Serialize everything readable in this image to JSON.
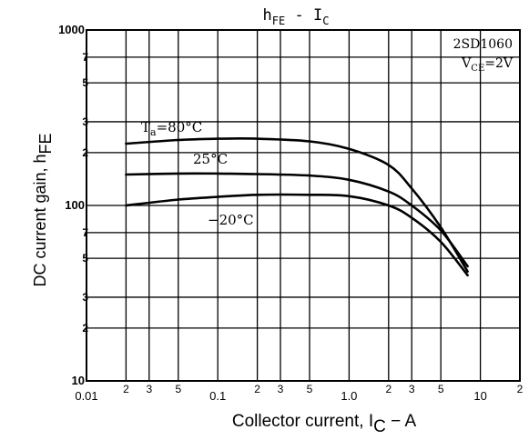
{
  "chart_data": {
    "type": "line",
    "title": "hFE - IC",
    "title_main": "h",
    "title_sub": "FE",
    "title_mid": " - I",
    "title_sub2": "C",
    "xlabel_main": "Collector current, I",
    "xlabel_sub": "C",
    "xlabel_unit": " − A",
    "ylabel_main": "DC current gain, h",
    "ylabel_sub": "FE",
    "x_scale": "log",
    "y_scale": "log",
    "xlim": [
      0.01,
      20
    ],
    "ylim": [
      10,
      1000
    ],
    "grid": true,
    "x_major_ticks": [
      {
        "value": 0.01,
        "label": "0.01"
      },
      {
        "value": 0.1,
        "label": "0.1"
      },
      {
        "value": 1,
        "label": "1.0"
      },
      {
        "value": 10,
        "label": "10"
      }
    ],
    "x_minor_ticks": [
      {
        "value": 0.02,
        "label": "2"
      },
      {
        "value": 0.03,
        "label": "3"
      },
      {
        "value": 0.05,
        "label": "5"
      },
      {
        "value": 0.2,
        "label": "2"
      },
      {
        "value": 0.3,
        "label": "3"
      },
      {
        "value": 0.5,
        "label": "5"
      },
      {
        "value": 2,
        "label": "2"
      },
      {
        "value": 3,
        "label": "3"
      },
      {
        "value": 5,
        "label": "5"
      },
      {
        "value": 20,
        "label": "2"
      }
    ],
    "y_major_ticks": [
      {
        "value": 10,
        "label": "10"
      },
      {
        "value": 100,
        "label": "100"
      },
      {
        "value": 1000,
        "label": "1000"
      }
    ],
    "y_minor_ticks": [
      {
        "value": 20,
        "label": "2"
      },
      {
        "value": 30,
        "label": "3"
      },
      {
        "value": 50,
        "label": "5"
      },
      {
        "value": 70,
        "label": "7"
      },
      {
        "value": 200,
        "label": "2"
      },
      {
        "value": 300,
        "label": "3"
      },
      {
        "value": 500,
        "label": "5"
      },
      {
        "value": 700,
        "label": "7"
      }
    ],
    "annotation_part": "2SD1060",
    "annotation_cond_main": "V",
    "annotation_cond_sub": "CE",
    "annotation_cond_value": "=2V",
    "series": [
      {
        "label_main": "T",
        "label_sub": "a",
        "label_rest": "=80°C",
        "x": [
          0.02,
          0.05,
          0.1,
          0.2,
          0.5,
          1,
          2,
          3,
          5,
          8
        ],
        "y": [
          225,
          236,
          240,
          240,
          232,
          210,
          170,
          125,
          75,
          42
        ]
      },
      {
        "label_main": "25°C",
        "label_sub": "",
        "label_rest": "",
        "x": [
          0.02,
          0.05,
          0.1,
          0.2,
          0.5,
          1,
          2,
          3,
          5,
          8
        ],
        "y": [
          150,
          152,
          152,
          151,
          148,
          140,
          120,
          100,
          72,
          45
        ]
      },
      {
        "label_main": "−20°C",
        "label_sub": "",
        "label_rest": "",
        "x": [
          0.02,
          0.05,
          0.1,
          0.2,
          0.5,
          1,
          2,
          3,
          5,
          8
        ],
        "y": [
          100,
          108,
          112,
          115,
          115,
          113,
          100,
          85,
          62,
          40
        ]
      }
    ]
  }
}
